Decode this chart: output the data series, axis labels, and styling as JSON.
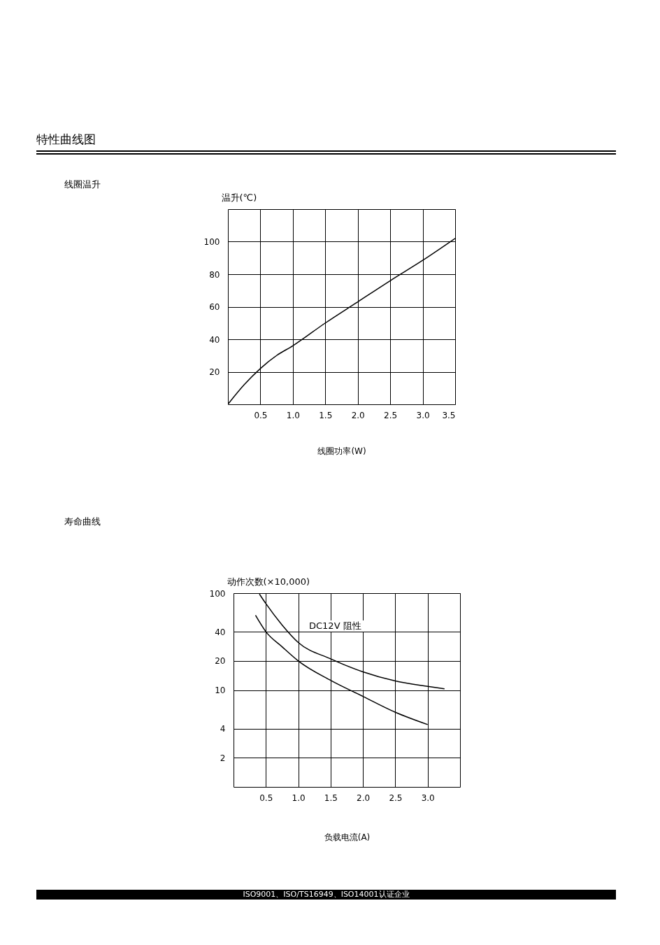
{
  "chart_data": [
    {
      "type": "line",
      "xlabel": "线圈功率(W)",
      "ylabel": "温升(℃)",
      "annotations": [
        "特性曲线图",
        "线圈温升"
      ],
      "x": [
        0,
        0.25,
        0.5,
        0.75,
        1.0,
        1.5,
        2.0,
        2.5,
        3.0,
        3.5
      ],
      "series": [
        {
          "color": "#000000",
          "values": [
            0,
            12,
            22,
            30,
            36,
            50,
            63,
            76,
            88.5,
            102
          ]
        }
      ],
      "xlim": [
        0,
        3.5
      ],
      "xticks": [
        0.5,
        {
          "value": 1,
          "label": "1.0"
        },
        1.5,
        {
          "value": 2,
          "label": "2.0"
        },
        2.5,
        {
          "value": 3,
          "label": "3.0"
        },
        3.5
      ],
      "ylim": [
        0,
        120
      ],
      "yticks": [
        20,
        40,
        60,
        80,
        100
      ],
      "grid": true,
      "legend": false
    },
    {
      "type": "line",
      "xlabel": "负载电流(A)",
      "ylabel": "动作次数(×10,000)",
      "log": "y",
      "annotations": [
        "寿命曲线",
        "DC12V  阻性",
        "ISO9001、ISO/TS16949、ISO14001认证企业"
      ],
      "series": [
        {
          "color": "#000000",
          "x": [
            0.4,
            0.5,
            0.75,
            1.0,
            1.5,
            2.0,
            2.5,
            3.0,
            3.26
          ],
          "values": [
            98,
            78,
            47,
            31,
            21,
            15.4,
            12.4,
            10.9,
            10.3
          ]
        },
        {
          "color": "#000000",
          "x": [
            0.34,
            0.5,
            0.75,
            1.0,
            1.5,
            2.0,
            2.5,
            3.0
          ],
          "values": [
            59,
            40,
            28,
            20,
            12.6,
            8.6,
            5.9,
            4.4
          ]
        }
      ],
      "xlim": [
        0,
        3.5
      ],
      "xticks": [
        0.5,
        {
          "value": 1,
          "label": "1.0"
        },
        1.5,
        {
          "value": 2,
          "label": "2.0"
        },
        2.5,
        {
          "value": 3,
          "label": "3.0"
        }
      ],
      "ylim": [
        1,
        100
      ],
      "yticks": [
        2,
        4,
        10,
        20,
        40,
        100
      ],
      "grid": true,
      "legend": false
    }
  ]
}
